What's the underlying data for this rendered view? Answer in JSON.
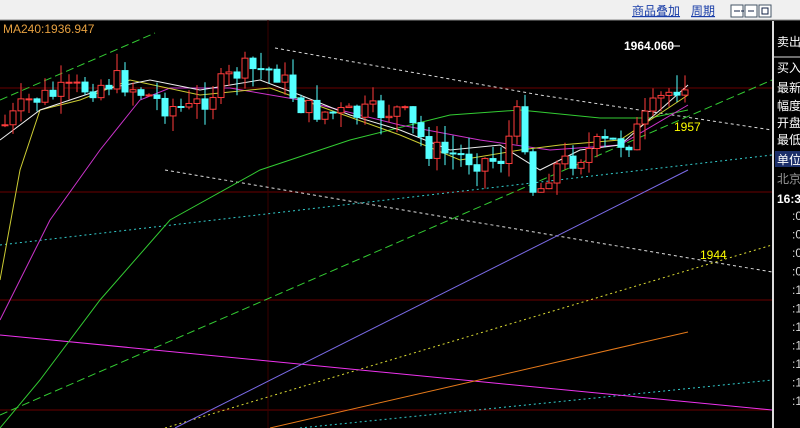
{
  "toolbar": {
    "overlay": "商品叠加",
    "period": "周期"
  },
  "indicator": "MA240:1936.947",
  "annotations": {
    "high": "1964.060",
    "level_1957": "1957",
    "level_1944": "1944"
  },
  "side_panel": {
    "labels": [
      "卖出",
      "买入",
      "最新",
      "幅度",
      "开盘",
      "最低",
      "单位"
    ],
    "location": "北京",
    "time": "16:3",
    "ticks": [
      ":0",
      ":0",
      ":0",
      ":0",
      ":1",
      ":1",
      ":1",
      ":1",
      ":1",
      ":1",
      ":1"
    ]
  }
}
